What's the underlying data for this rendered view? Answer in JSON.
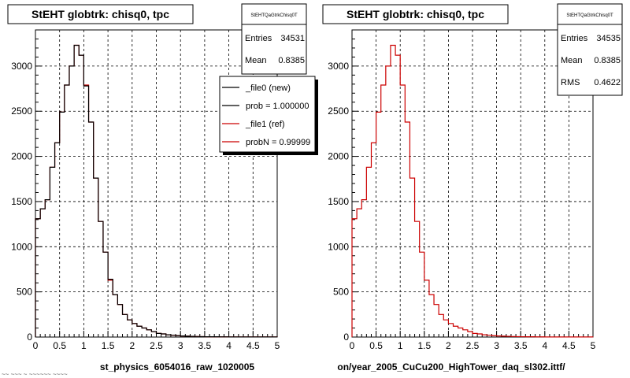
{
  "colors": {
    "ref": "#cc0000",
    "new": "#000000",
    "grid": "#000000",
    "background": "#ffffff"
  },
  "chart_data": [
    {
      "type": "histogram",
      "title": "StEHT globtrk: chisq0, tpc",
      "xlabel": "st_physics_6054016_raw_1020005",
      "xlim": [
        0,
        5
      ],
      "ylim": [
        0,
        3400
      ],
      "x_ticks": [
        "0",
        "0.5",
        "1",
        "1.5",
        "2",
        "2.5",
        "3",
        "3.5",
        "4",
        "4.5",
        "5"
      ],
      "y_ticks": [
        "0",
        "500",
        "1000",
        "1500",
        "2000",
        "2500",
        "3000"
      ],
      "grid": true,
      "bin_width": 0.1,
      "stats": {
        "name": "StEHTQaGtrkChisq0T",
        "rows": [
          {
            "label": "Entries",
            "value": "34531"
          },
          {
            "label": "Mean",
            "value": "0.8385"
          }
        ]
      },
      "legend": [
        {
          "text": "_file0 (new)",
          "color": "#000000"
        },
        {
          "text": "prob = 1.000000",
          "color": "#000000"
        },
        {
          "text": "_file1 (ref)",
          "color": "#cc0000"
        },
        {
          "text": "probN = 0.99999",
          "color": "#cc0000"
        }
      ],
      "series": [
        {
          "name": "_file1 (ref)",
          "color": "#cc0000",
          "values": [
            1310,
            1420,
            1520,
            1880,
            2150,
            2490,
            2790,
            3000,
            3230,
            3120,
            2790,
            2380,
            1760,
            1280,
            940,
            630,
            470,
            360,
            250,
            190,
            150,
            120,
            100,
            80,
            60,
            40,
            35,
            25,
            20,
            15,
            12,
            10,
            8,
            6,
            5,
            4,
            3,
            3,
            2,
            2,
            1,
            1,
            1,
            1,
            1,
            1,
            1,
            1,
            1,
            1
          ]
        },
        {
          "name": "_file0 (new)",
          "color": "#000000",
          "values": [
            1310,
            1420,
            1520,
            1880,
            2150,
            2490,
            2790,
            3000,
            3230,
            3120,
            2780,
            2380,
            1760,
            1280,
            940,
            640,
            470,
            360,
            250,
            190,
            150,
            120,
            100,
            80,
            60,
            40,
            35,
            25,
            20,
            15,
            12,
            10,
            8,
            6,
            5,
            4,
            3,
            3,
            2,
            2,
            1,
            1,
            1,
            1,
            1,
            1,
            1,
            1,
            1,
            1
          ]
        }
      ]
    },
    {
      "type": "histogram",
      "title": "StEHT globtrk: chisq0, tpc",
      "xlabel": "on/year_2005_CuCu200_HighTower_daq_sl302.ittf/",
      "xlim": [
        0,
        5
      ],
      "ylim": [
        0,
        3400
      ],
      "x_ticks": [
        "0",
        "0.5",
        "1",
        "1.5",
        "2",
        "2.5",
        "3",
        "3.5",
        "4",
        "4.5",
        "5"
      ],
      "y_ticks": [
        "0",
        "500",
        "1000",
        "1500",
        "2000",
        "2500",
        "3000"
      ],
      "grid": true,
      "bin_width": 0.1,
      "stats": {
        "name": "StEHTQaGtrkChisq0T",
        "rows": [
          {
            "label": "Entries",
            "value": "34535"
          },
          {
            "label": "Mean",
            "value": "0.8385"
          },
          {
            "label": "RMS",
            "value": "0.4622"
          }
        ]
      },
      "series": [
        {
          "name": "",
          "color": "#cc0000",
          "values": [
            1310,
            1420,
            1520,
            1880,
            2150,
            2490,
            2790,
            3000,
            3230,
            3120,
            2790,
            2380,
            1760,
            1280,
            940,
            630,
            470,
            360,
            250,
            190,
            150,
            120,
            100,
            80,
            60,
            40,
            35,
            25,
            20,
            15,
            12,
            10,
            8,
            6,
            5,
            4,
            3,
            3,
            2,
            2,
            1,
            1,
            1,
            1,
            1,
            1,
            1,
            1,
            1,
            1
          ]
        }
      ]
    }
  ],
  "footer_text": "~~ ~~~ ~ ~~~~~~ ~~~~"
}
